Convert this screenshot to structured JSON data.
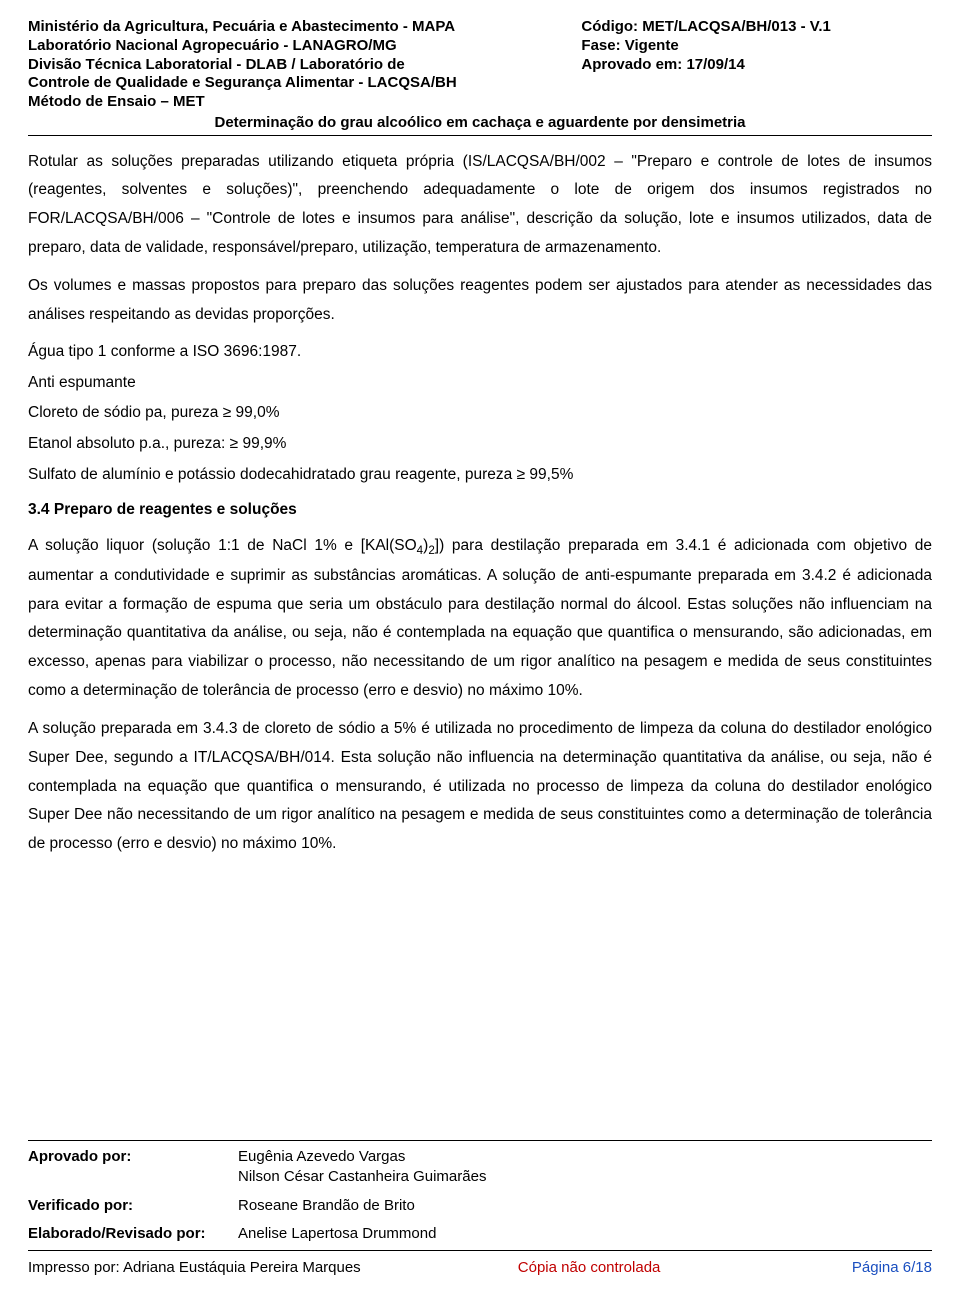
{
  "header": {
    "left": {
      "line1": "Ministério da Agricultura, Pecuária e Abastecimento - MAPA",
      "line2": "Laboratório Nacional Agropecuário - LANAGRO/MG",
      "line3": "Divisão Técnica Laboratorial - DLAB / Laboratório de",
      "line4": "Controle de Qualidade e Segurança Alimentar - LACQSA/BH",
      "line5": "Método de Ensaio – MET"
    },
    "right": {
      "codigo_label": "Código:",
      "codigo_value": "MET/LACQSA/BH/013 - V.1",
      "fase_label": "Fase:",
      "fase_value": "Vigente",
      "aprovado_label": "Aprovado em:",
      "aprovado_value": "17/09/14"
    },
    "title": "Determinação do grau alcoólico em cachaça e aguardente por densimetria"
  },
  "body": {
    "p1": "Rotular as soluções preparadas utilizando etiqueta própria (IS/LACQSA/BH/002 – \"Preparo e controle de lotes de insumos (reagentes, solventes e soluções)\", preenchendo adequadamente o lote de origem dos insumos registrados no FOR/LACQSA/BH/006 – \"Controle de lotes e insumos para análise\", descrição da solução, lote e insumos utilizados, data de preparo, data de validade, responsável/preparo, utilização, temperatura de armazenamento.",
    "p2": "Os volumes e massas propostos para preparo das soluções reagentes podem ser ajustados para atender as necessidades das análises respeitando as devidas proporções.",
    "p3": "Água tipo 1 conforme a ISO 3696:1987.",
    "p4": "Anti espumante",
    "p5": "Cloreto de sódio pa, pureza ≥ 99,0%",
    "p6": "Etanol absoluto p.a., pureza: ≥ 99,9%",
    "p7": "Sulfato de alumínio e potássio dodecahidratado grau reagente, pureza ≥ 99,5%",
    "section_heading": "3.4 Preparo de reagentes e soluções",
    "p8a": "A solução liquor (solução 1:1 de NaCl 1% e [KAl(SO",
    "p8b": ")",
    "p8c": "]) para destilação preparada em 3.4.1 é adicionada com objetivo de aumentar a condutividade e suprimir as substâncias aromáticas. A solução de anti-espumante preparada em 3.4.2 é adicionada para evitar a formação de espuma que seria um obstáculo para destilação normal do álcool. Estas soluções não influenciam na determinação quantitativa da análise, ou seja, não é contemplada na equação que quantifica o mensurando, são adicionadas, em excesso, apenas para viabilizar o processo, não necessitando de um rigor analítico na pesagem e medida de seus constituintes como a determinação de tolerância de processo (erro e desvio) no máximo 10%.",
    "p9": "A solução preparada em 3.4.3 de cloreto de sódio a 5% é utilizada no procedimento de limpeza da coluna do destilador enológico Super Dee, segundo a IT/LACQSA/BH/014. Esta solução não influencia na determinação quantitativa da análise, ou seja, não é contemplada na equação que quantifica o mensurando, é utilizada no processo de limpeza da coluna do destilador enológico Super Dee não necessitando de um rigor analítico na pesagem e medida de seus constituintes como a determinação de tolerância de processo (erro e desvio) no máximo 10%."
  },
  "signoff": {
    "aprovado_label": "Aprovado por:",
    "aprovado_name1": "Eugênia Azevedo Vargas",
    "aprovado_name2": "Nilson César Castanheira Guimarães",
    "verificado_label": "Verificado por:",
    "verificado_name": "Roseane Brandão de Brito",
    "elaborado_label": "Elaborado/Revisado por:",
    "elaborado_name": "Anelise Lapertosa Drummond"
  },
  "footer": {
    "impresso_label": "Impresso por:",
    "impresso_name": "Adriana Eustáquia Pereira Marques",
    "mid": "Cópia não controlada",
    "pagina_label": "Página",
    "pagina_value": "6/18"
  },
  "colors": {
    "text": "#000000",
    "red": "#c00000",
    "blue": "#1a4fc0",
    "background": "#ffffff"
  }
}
